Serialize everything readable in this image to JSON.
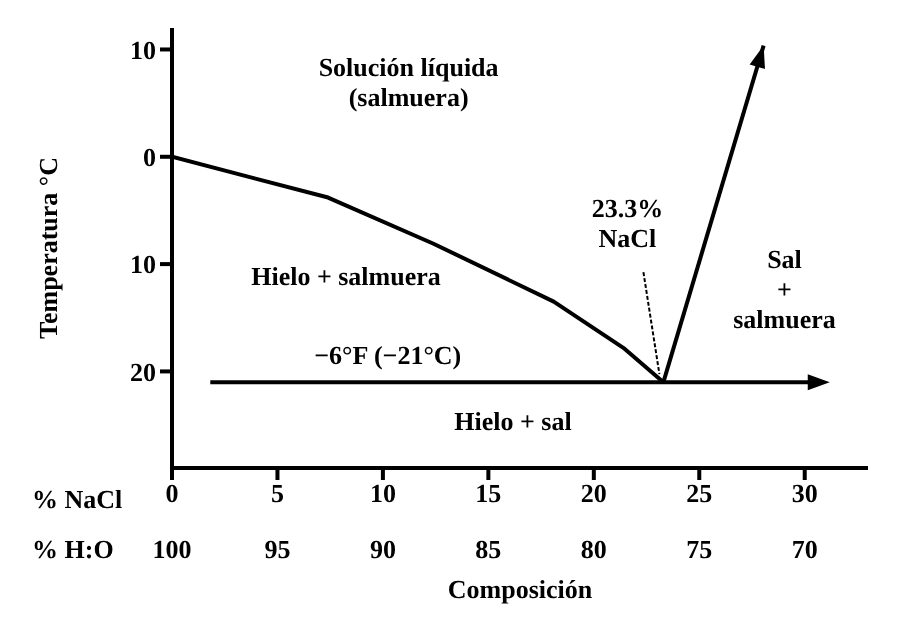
{
  "chart_data": {
    "type": "line",
    "ylabel": "Temperatura °C",
    "xlabel": "% NaCl",
    "x2label": "% H:O",
    "xlim": [
      0,
      33
    ],
    "xticks": [
      0,
      5,
      10,
      15,
      20,
      25,
      30
    ],
    "x2lim": [
      100,
      67
    ],
    "x2ticks": [
      100,
      95,
      90,
      85,
      80,
      75,
      70
    ],
    "ylim": [
      -29,
      12
    ],
    "yticks": [
      10,
      0,
      {
        "value": -10,
        "label": "10"
      },
      {
        "value": -20,
        "label": "20"
      }
    ],
    "series": [
      {
        "color": "#000000",
        "x": [
          0,
          7.4,
          12.4,
          18.1,
          21.4,
          23.3
        ],
        "values": [
          0,
          -3.8,
          -8.1,
          -13.5,
          -17.8,
          -21
        ]
      }
    ],
    "annotations": [
      "Solución líquida\n(salmuera)",
      "Hielo + salmuera",
      {
        "text": "23.3%\nNaCl",
        "x": 23.3,
        "y": -21
      },
      "Sal\n+\nsalmuera",
      "Hielo + sal",
      "Composición"
    ],
    "ref_lines": [
      {
        "axis": "y",
        "value": -21,
        "label": "−6°F (−21°C)",
        "color": "#000000"
      }
    ],
    "grid": false,
    "marker": "none",
    "line_style": "solid"
  }
}
